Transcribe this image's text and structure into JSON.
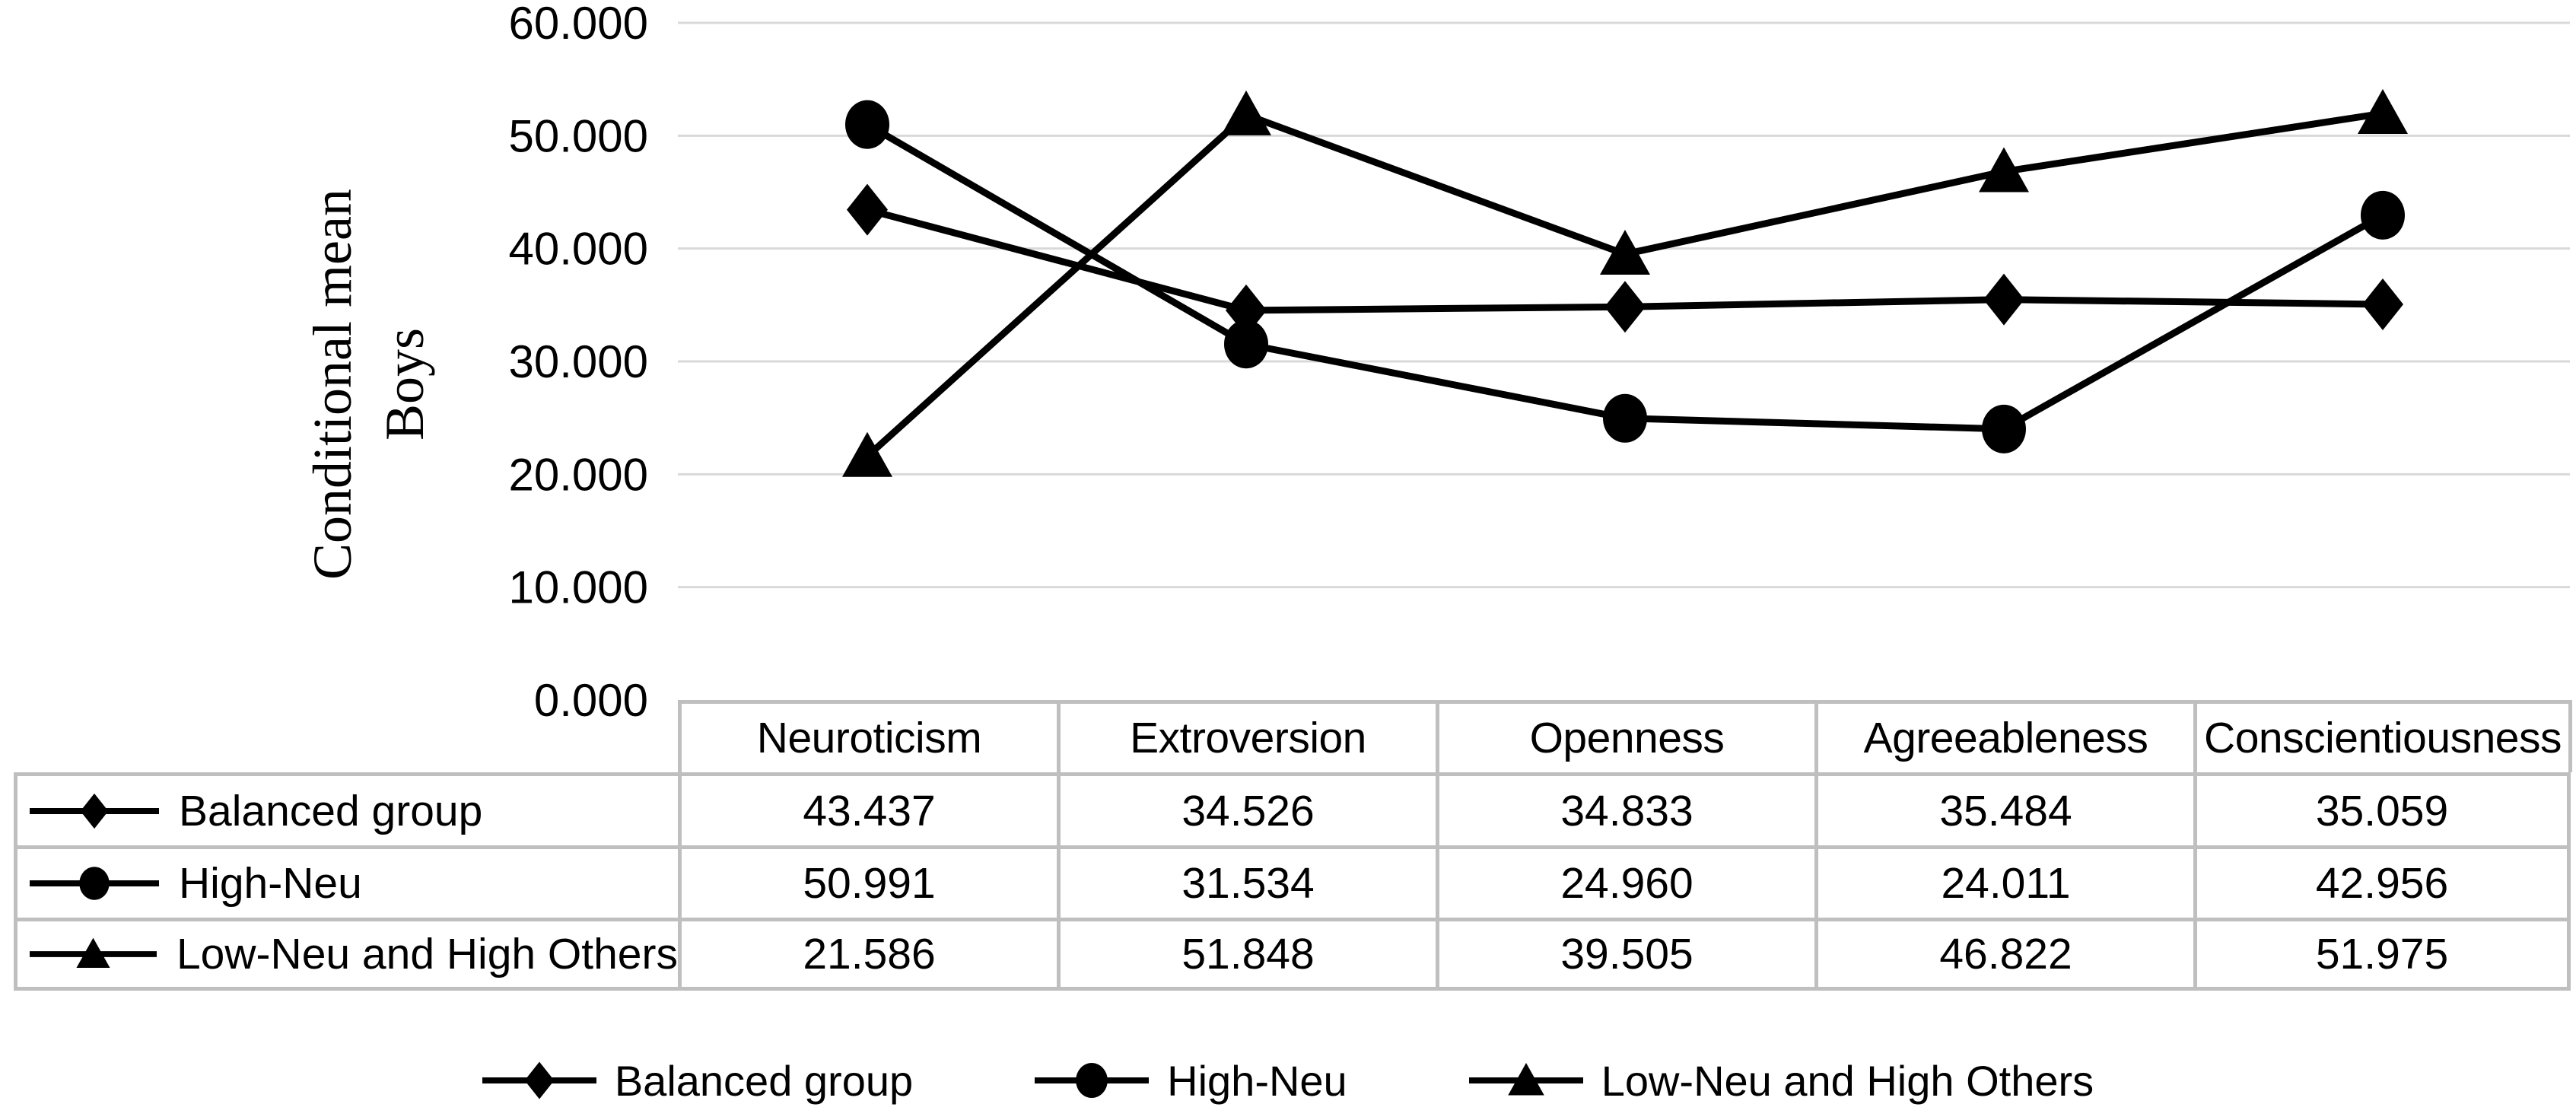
{
  "figure": {
    "y_axis_title_lines": [
      "Conditional mean",
      "Boys"
    ]
  },
  "chart_data": {
    "type": "line",
    "title": "",
    "ylabel": "Conditional mean Boys",
    "xlabel": "",
    "categories": [
      "Neuroticism",
      "Extroversion",
      "Openness",
      "Agreeableness",
      "Conscientiousness"
    ],
    "series": [
      {
        "name": "Balanced group",
        "marker": "diamond",
        "values": [
          43.437,
          34.526,
          34.833,
          35.484,
          35.059
        ]
      },
      {
        "name": "High-Neu",
        "marker": "circle",
        "values": [
          50.991,
          31.534,
          24.96,
          24.011,
          42.956
        ]
      },
      {
        "name": "Low-Neu and High Others",
        "marker": "triangle",
        "values": [
          21.586,
          51.848,
          39.505,
          46.822,
          51.975
        ]
      }
    ],
    "ylim": [
      0,
      60
    ],
    "ytick_step": 10,
    "ytick_labels": [
      "0.000",
      "10.000",
      "20.000",
      "30.000",
      "40.000",
      "50.000",
      "60.000"
    ],
    "value_format_decimals": 3,
    "grid": true,
    "gridlines": "horizontal",
    "legend_position": "bottom",
    "data_table_shown": true
  },
  "colors": {
    "series_line": "#000000",
    "marker_fill": "#000000",
    "gridline": "#d9d9d9",
    "table_border": "#bfbfbf",
    "text": "#000000",
    "background": "#ffffff"
  }
}
